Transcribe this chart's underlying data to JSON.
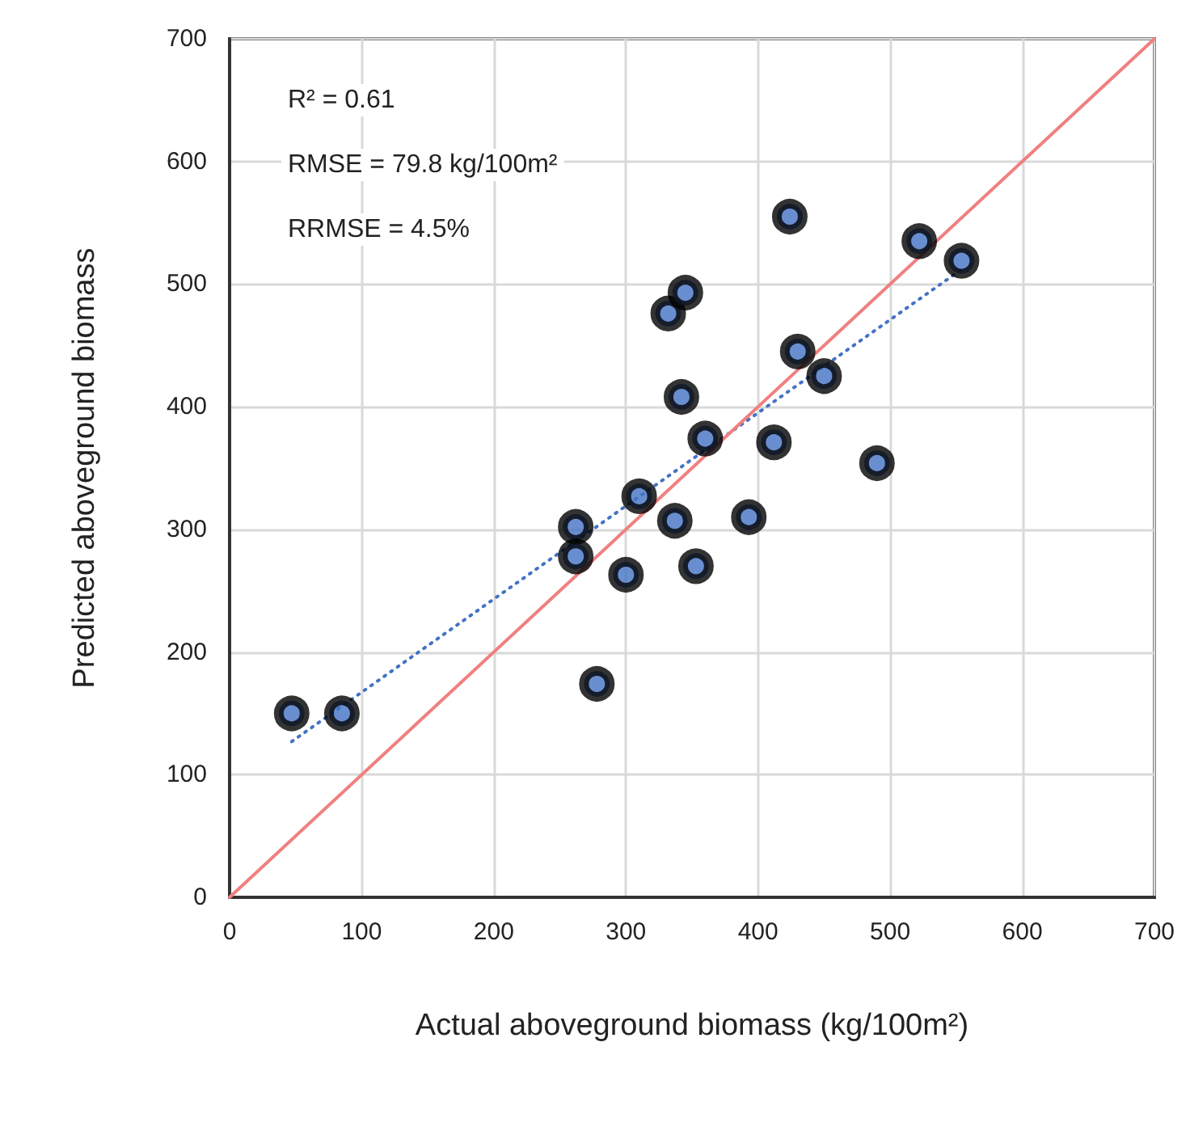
{
  "chart_data": {
    "type": "scatter",
    "xlabel": "Actual aboveground biomass (kg/100m²)",
    "ylabel": "Predicted aboveground biomass",
    "annotations": [
      "R² = 0.61",
      "RMSE = 79.8 kg/100m²",
      "RRMSE = 4.5%"
    ],
    "series": [
      {
        "color": "#000000",
        "marker": "circle",
        "x": [
          47,
          85,
          262,
          262,
          278,
          300,
          310,
          337,
          332,
          345,
          342,
          353,
          360,
          393,
          412,
          424,
          430,
          450,
          490,
          522,
          554
        ],
        "values": [
          150,
          150,
          302,
          278,
          174,
          263,
          327,
          307,
          476,
          493,
          408,
          270,
          374,
          310,
          371,
          555,
          445,
          425,
          354,
          535,
          519
        ]
      },
      {
        "type": "line",
        "color": "#4472c4",
        "line_style": "dotted",
        "x": [
          47,
          554
        ],
        "values": [
          127,
          512
        ]
      },
      {
        "type": "line",
        "color": "#f08080",
        "line_style": "solid",
        "x": [
          0,
          700
        ],
        "values": [
          0,
          700
        ]
      }
    ],
    "xlim": [
      0,
      700
    ],
    "xticks": [
      0,
      100,
      200,
      300,
      400,
      500,
      600,
      700
    ],
    "ylim": [
      0,
      700
    ],
    "yticks": [
      0,
      100,
      200,
      300,
      400,
      500,
      600,
      700
    ],
    "grid": true
  }
}
